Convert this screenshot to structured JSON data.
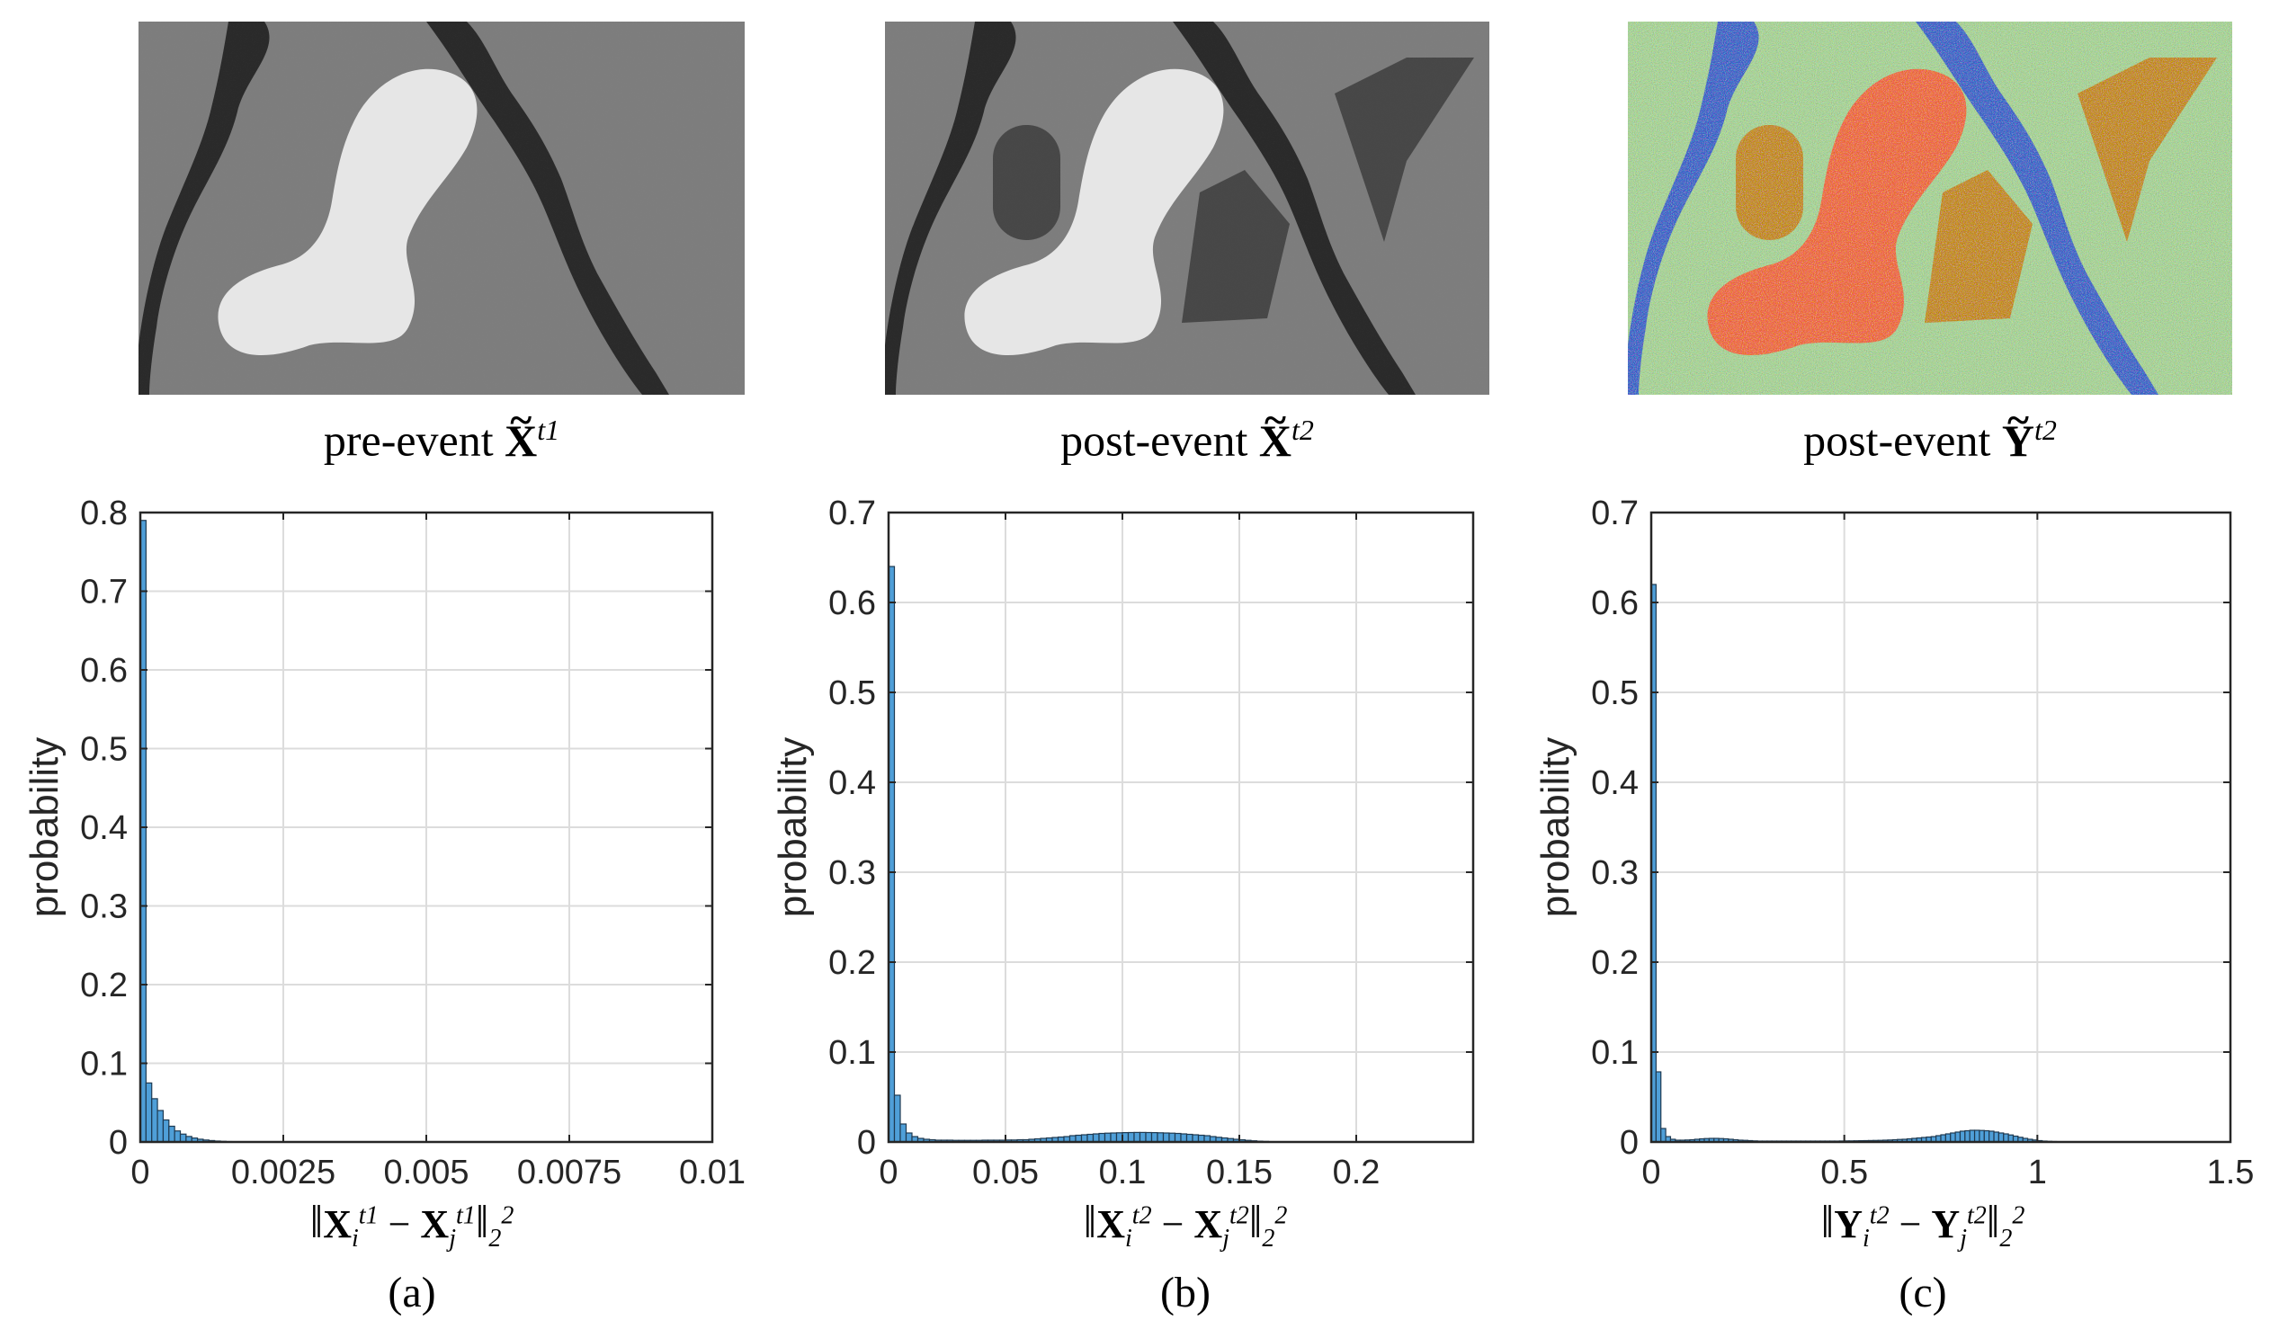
{
  "top_images": [
    {
      "caption_prefix": "pre-event",
      "symbol": "X",
      "sup": "t1",
      "colors": {
        "bg": "#7d7d7d",
        "river": "#2a2a2a",
        "blob": "#e6e6e6"
      }
    },
    {
      "caption_prefix": "post-event",
      "symbol": "X",
      "sup": "t2",
      "colors": {
        "bg": "#7d7d7d",
        "river": "#2a2a2a",
        "blob": "#e6e6e6",
        "change": "#474747"
      }
    },
    {
      "caption_prefix": "post-event",
      "symbol": "Y",
      "sup": "t2",
      "colors": {
        "bg": "#a8d496",
        "river": "#3a63c9",
        "blob": "#f06a3a",
        "change": "#c58a1a"
      }
    }
  ],
  "chart_data": [
    {
      "type": "bar",
      "panel_label": "(a)",
      "ylabel": "probability",
      "xlabel": {
        "sym": "X",
        "sup": "t1"
      },
      "xlim": [
        0,
        0.01
      ],
      "ylim": [
        0,
        0.8
      ],
      "xticks": [
        0,
        0.0025,
        0.005,
        0.0075,
        0.01
      ],
      "xtick_labels": [
        "0",
        "0.0025",
        "0.005",
        "0.0075",
        "0.01"
      ],
      "yticks": [
        0,
        0.1,
        0.2,
        0.3,
        0.4,
        0.5,
        0.6,
        0.7,
        0.8
      ],
      "ytick_labels": [
        "0",
        "0.1",
        "0.2",
        "0.3",
        "0.4",
        "0.5",
        "0.6",
        "0.7",
        "0.8"
      ],
      "bin_width": 0.0001,
      "values": [
        0.79,
        0.075,
        0.055,
        0.04,
        0.028,
        0.02,
        0.014,
        0.01,
        0.007,
        0.005,
        0.0035,
        0.0025,
        0.0018,
        0.0012,
        0.0008,
        0.0005,
        0.0003,
        0.0002,
        0.0001
      ]
    },
    {
      "type": "bar",
      "panel_label": "(b)",
      "ylabel": "probability",
      "xlabel": {
        "sym": "X",
        "sup": "t2"
      },
      "xlim": [
        0,
        0.25
      ],
      "ylim": [
        0,
        0.7
      ],
      "xticks": [
        0,
        0.05,
        0.1,
        0.15,
        0.2
      ],
      "xtick_labels": [
        "0",
        "0.05",
        "0.1",
        "0.15",
        "0.2"
      ],
      "yticks": [
        0,
        0.1,
        0.2,
        0.3,
        0.4,
        0.5,
        0.6,
        0.7
      ],
      "ytick_labels": [
        "0",
        "0.1",
        "0.2",
        "0.3",
        "0.4",
        "0.5",
        "0.6",
        "0.7"
      ],
      "bin_width": 0.0025,
      "values": [
        0.64,
        0.052,
        0.02,
        0.01,
        0.006,
        0.004,
        0.003,
        0.0025,
        0.002,
        0.002,
        0.002,
        0.0018,
        0.0018,
        0.0018,
        0.0018,
        0.0018,
        0.002,
        0.002,
        0.002,
        0.002,
        0.0022,
        0.0022,
        0.0025,
        0.0025,
        0.003,
        0.0035,
        0.004,
        0.0045,
        0.005,
        0.0055,
        0.006,
        0.007,
        0.0075,
        0.008,
        0.0085,
        0.009,
        0.0095,
        0.0098,
        0.01,
        0.0102,
        0.0104,
        0.0105,
        0.0106,
        0.0106,
        0.0105,
        0.0104,
        0.0102,
        0.01,
        0.0098,
        0.0095,
        0.009,
        0.0085,
        0.008,
        0.0075,
        0.007,
        0.006,
        0.0052,
        0.0045,
        0.0038,
        0.003,
        0.0024,
        0.0018,
        0.0013,
        0.0009,
        0.0006,
        0.0004,
        0.0003,
        0.0002,
        0.0001
      ]
    },
    {
      "type": "bar",
      "panel_label": "(c)",
      "ylabel": "probability",
      "xlabel": {
        "sym": "Y",
        "sup": "t2"
      },
      "xlim": [
        0,
        1.5
      ],
      "ylim": [
        0,
        0.7
      ],
      "xticks": [
        0,
        0.5,
        1,
        1.5
      ],
      "xtick_labels": [
        "0",
        "0.5",
        "1",
        "1.5"
      ],
      "yticks": [
        0,
        0.1,
        0.2,
        0.3,
        0.4,
        0.5,
        0.6,
        0.7
      ],
      "ytick_labels": [
        "0",
        "0.1",
        "0.2",
        "0.3",
        "0.4",
        "0.5",
        "0.6",
        "0.7"
      ],
      "bin_width": 0.0125,
      "values": [
        0.62,
        0.078,
        0.015,
        0.006,
        0.003,
        0.002,
        0.002,
        0.0022,
        0.0025,
        0.003,
        0.0035,
        0.0038,
        0.004,
        0.004,
        0.0038,
        0.0035,
        0.003,
        0.0025,
        0.002,
        0.0018,
        0.0015,
        0.0012,
        0.001,
        0.001,
        0.001,
        0.001,
        0.001,
        0.001,
        0.001,
        0.001,
        0.001,
        0.001,
        0.001,
        0.001,
        0.001,
        0.001,
        0.001,
        0.001,
        0.001,
        0.0011,
        0.0012,
        0.0012,
        0.0013,
        0.0014,
        0.0015,
        0.0016,
        0.0017,
        0.0018,
        0.002,
        0.0022,
        0.0025,
        0.0028,
        0.003,
        0.0035,
        0.004,
        0.0045,
        0.005,
        0.0055,
        0.006,
        0.007,
        0.008,
        0.009,
        0.01,
        0.011,
        0.012,
        0.0125,
        0.013,
        0.013,
        0.0128,
        0.0125,
        0.012,
        0.011,
        0.01,
        0.009,
        0.0078,
        0.0065,
        0.0052,
        0.004,
        0.003,
        0.0022,
        0.0015,
        0.001,
        0.0007,
        0.0005,
        0.0003,
        0.0002,
        0.0001
      ]
    }
  ]
}
